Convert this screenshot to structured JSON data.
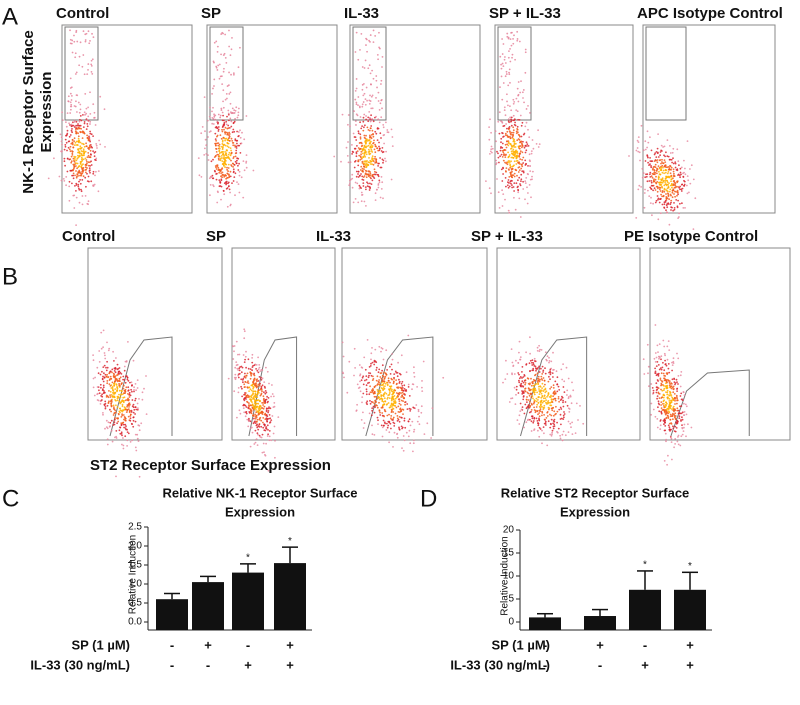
{
  "panels": {
    "A": {
      "letter": "A",
      "y_label_lines": [
        "NK-1 Receptor Surface",
        "Expression"
      ],
      "plots": [
        {
          "title": "Control"
        },
        {
          "title": "SP"
        },
        {
          "title": "IL-33"
        },
        {
          "title": "SP + IL-33"
        },
        {
          "title": "APC Isotype Control"
        }
      ]
    },
    "B": {
      "letter": "B",
      "x_label": "ST2  Receptor Surface Expression",
      "plots": [
        {
          "title": "Control"
        },
        {
          "title": "SP"
        },
        {
          "title": "IL-33"
        },
        {
          "title": "SP + IL-33"
        },
        {
          "title": "PE Isotype Control"
        }
      ]
    }
  },
  "chart_data": [
    {
      "type": "bar",
      "letter": "C",
      "title_lines": [
        "Relative NK-1 Receptor Surface",
        "Expression"
      ],
      "y_label": "Relative Induction",
      "color": "#111111",
      "ylim": [
        0,
        2.5
      ],
      "yticks": [
        {
          "value": 0,
          "label": "0.0"
        },
        0.5,
        {
          "value": 1,
          "label": "1.0"
        },
        1.5,
        {
          "value": 2,
          "label": "2.0"
        },
        2.5
      ],
      "values": [
        0.6,
        1.05,
        1.3,
        1.55
      ],
      "errors": [
        0.15,
        0.15,
        0.23,
        0.42
      ],
      "annotations": [
        null,
        null,
        "*",
        "*"
      ],
      "conditions": [
        {
          "label": "SP  (1 µM)",
          "values": [
            "-",
            "+",
            "-",
            "+"
          ]
        },
        {
          "label": "IL-33 (30 ng/mL)",
          "values": [
            "-",
            "-",
            "+",
            "+"
          ]
        }
      ]
    },
    {
      "type": "bar",
      "letter": "D",
      "title_lines": [
        "Relative ST2 Receptor Surface",
        "Expression"
      ],
      "y_label": "Relative Induction",
      "color": "#111111",
      "ylim": [
        0,
        20
      ],
      "yticks": [
        0,
        5,
        10,
        15,
        20
      ],
      "values": [
        1,
        1.3,
        7,
        7
      ],
      "errors": [
        0.8,
        1.4,
        4.1,
        3.8
      ],
      "annotations": [
        null,
        null,
        "*",
        "*"
      ],
      "conditions": [
        {
          "label": "SP  (1 µM)",
          "values": [
            "-",
            "+",
            "-",
            "+"
          ]
        },
        {
          "label": "IL-33 (30 ng/mL)",
          "values": [
            "-",
            "-",
            "+",
            "+"
          ]
        }
      ]
    }
  ]
}
